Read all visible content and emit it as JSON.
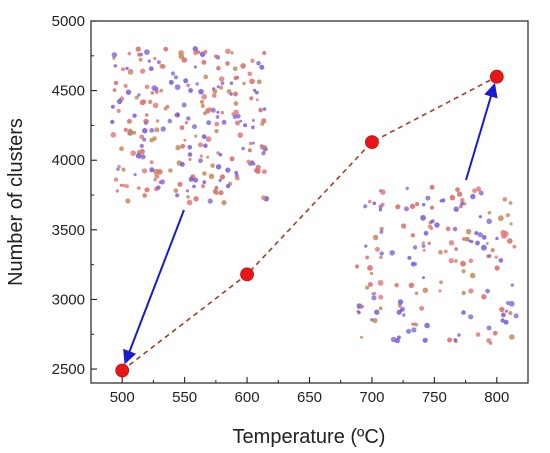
{
  "chart_data": {
    "type": "scatter",
    "x": [
      500,
      600,
      700,
      800
    ],
    "y": [
      2490,
      3180,
      4130,
      4600
    ],
    "series": [
      {
        "values": [
          2490,
          3180,
          4130,
          4600
        ],
        "color": "#e8161b",
        "line_color": "#a0402a",
        "line_style": "dashed"
      }
    ],
    "xlabel": "Temperature (ºC)",
    "ylabel": "Number of clusters",
    "xlim": [
      475,
      825
    ],
    "ylim": [
      2400,
      5000
    ],
    "x_ticks": [
      "500",
      "550",
      "600",
      "650",
      "700",
      "750",
      "800"
    ],
    "y_ticks": [
      "2500",
      "3000",
      "3500",
      "4000",
      "4500",
      "5000"
    ],
    "grid": false,
    "legend": "none",
    "annotations": [
      {
        "type": "inset-image",
        "description_key": "cluster-map-500",
        "arrow_to_x": 500,
        "arrow_to_y": 2490
      },
      {
        "type": "inset-image",
        "description_key": "cluster-map-800",
        "arrow_to_x": 800,
        "arrow_to_y": 4600
      }
    ],
    "arrow_color": "#1a1ad0"
  }
}
